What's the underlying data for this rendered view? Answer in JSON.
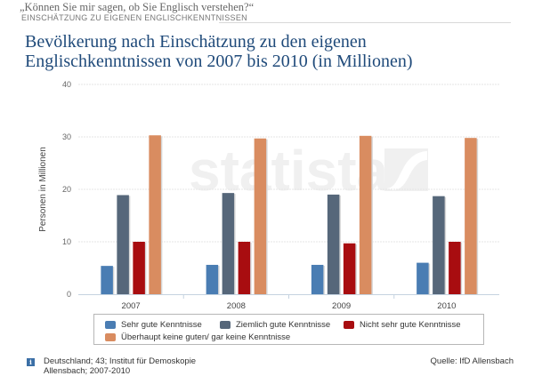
{
  "header": {
    "quote": "„Können Sie mir sagen, ob Sie Englisch verstehen?“",
    "kicker": "EINSCHÄTZUNG ZU EIGENEN ENGLISCHKENNTNISSEN",
    "title_line1": "Bevölkerung nach Einschätzung zu den eigenen",
    "title_line2": "Englischkenntnissen von 2007 bis 2010 (in Millionen)"
  },
  "watermark": "statista",
  "chart_data": {
    "type": "bar",
    "title": "Bevölkerung nach Einschätzung zu den eigenen Englischkenntnissen von 2007 bis 2010 (in Millionen)",
    "xlabel": "",
    "ylabel": "Personen in Millionen",
    "ylim": [
      0,
      40
    ],
    "yticks": [
      0,
      10,
      20,
      30,
      40
    ],
    "grid": true,
    "legend_position": "bottom",
    "categories": [
      "2007",
      "2008",
      "2009",
      "2010"
    ],
    "series": [
      {
        "name": "Sehr gute Kenntnisse",
        "color": "#4a7db3",
        "values": [
          5.4,
          5.6,
          5.6,
          6.0
        ]
      },
      {
        "name": "Ziemlich gute Kenntnisse",
        "color": "#56677a",
        "values": [
          18.9,
          19.3,
          19.0,
          18.7
        ]
      },
      {
        "name": "Nicht sehr gute Kenntnisse",
        "color": "#a80d10",
        "values": [
          10.0,
          10.0,
          9.7,
          10.0
        ]
      },
      {
        "name": "Überhaupt keine guten/ gar keine Kenntnisse",
        "color": "#d98c60",
        "values": [
          30.3,
          29.7,
          30.2,
          29.8
        ]
      }
    ]
  },
  "footer": {
    "info_icon": "i",
    "note_line1": "Deutschland; 43; Institut für Demoskopie",
    "note_line2": "Allensbach; 2007-2010",
    "source": "Quelle: IfD Allensbach"
  }
}
